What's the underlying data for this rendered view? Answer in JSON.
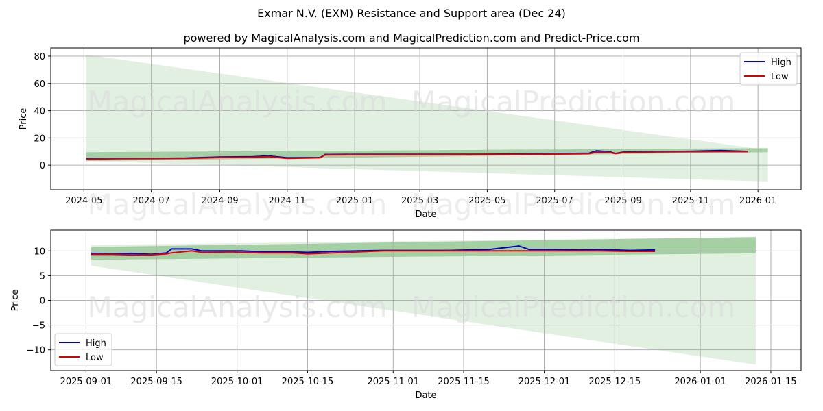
{
  "header": {
    "title": "Exmar N.V. (EXM) Resistance and Support area (Dec 24)",
    "subtitle": "powered by MagicalAnalysis.com and MagicalPrediction.com and Predict-Price.com"
  },
  "watermarks": [
    "MagicalAnalysis.com",
    "MagicalPrediction.com"
  ],
  "colors": {
    "high": "#0000cc",
    "low": "#dd0000",
    "band_light": "#d6ead6",
    "band_dark": "#8fc58f"
  },
  "chart_data": [
    {
      "type": "line",
      "title": "",
      "xlabel": "Date",
      "ylabel": "Price",
      "ylim": [
        -18,
        86
      ],
      "yticks": [
        0,
        20,
        40,
        60,
        80
      ],
      "xticks": [
        "2024-05",
        "2024-07",
        "2024-09",
        "2024-11",
        "2025-01",
        "2025-03",
        "2025-05",
        "2025-07",
        "2025-09",
        "2025-11",
        "2026-01"
      ],
      "grid": true,
      "legend_position": "upper right",
      "x": [
        "2024-05-03",
        "2024-06-01",
        "2024-07-01",
        "2024-08-01",
        "2024-09-01",
        "2024-10-01",
        "2024-10-15",
        "2024-11-01",
        "2024-12-01",
        "2024-12-05",
        "2025-01-01",
        "2025-03-01",
        "2025-05-01",
        "2025-06-20",
        "2025-08-01",
        "2025-08-08",
        "2025-08-20",
        "2025-08-25",
        "2025-09-01",
        "2025-10-01",
        "2025-11-01",
        "2025-11-28",
        "2025-12-23"
      ],
      "series": [
        {
          "name": "High",
          "values": [
            4.8,
            5.0,
            5.0,
            5.2,
            6.0,
            6.2,
            6.8,
            5.4,
            5.6,
            7.8,
            7.9,
            8.0,
            8.1,
            8.4,
            8.8,
            10.6,
            9.8,
            8.6,
            9.6,
            10.0,
            10.2,
            10.8,
            10.1
          ]
        },
        {
          "name": "Low",
          "values": [
            4.4,
            4.7,
            4.8,
            5.0,
            5.6,
            5.8,
            6.2,
            5.0,
            5.4,
            7.5,
            7.6,
            7.7,
            7.9,
            8.0,
            8.4,
            9.6,
            9.4,
            8.4,
            9.3,
            9.7,
            9.9,
            10.0,
            9.9
          ]
        }
      ],
      "bands": [
        {
          "name": "resistance-support-wide",
          "x_start": "2024-05-03",
          "x_end": "2026-01-10",
          "upper": [
            81,
            11
          ],
          "lower": [
            3,
            -12
          ]
        },
        {
          "name": "resistance-support-narrow",
          "x_start": "2024-05-03",
          "x_end": "2026-01-10",
          "upper": [
            9.5,
            12.5
          ],
          "lower": [
            3,
            9.5
          ]
        }
      ]
    },
    {
      "type": "line",
      "title": "",
      "xlabel": "Date",
      "ylabel": "Price",
      "ylim": [
        -14.2,
        14.2
      ],
      "yticks": [
        -10,
        -5,
        0,
        5,
        10
      ],
      "xticks": [
        "2025-09-01",
        "2025-09-15",
        "2025-10-01",
        "2025-10-15",
        "2025-11-01",
        "2025-11-15",
        "2025-12-01",
        "2025-12-15",
        "2026-01-01",
        "2026-01-15"
      ],
      "grid": true,
      "legend_position": "lower left",
      "x": [
        "2025-09-02",
        "2025-09-06",
        "2025-09-10",
        "2025-09-14",
        "2025-09-17",
        "2025-09-18",
        "2025-09-22",
        "2025-09-24",
        "2025-09-30",
        "2025-10-02",
        "2025-10-06",
        "2025-10-12",
        "2025-10-15",
        "2025-10-20",
        "2025-10-25",
        "2025-10-30",
        "2025-11-05",
        "2025-11-12",
        "2025-11-20",
        "2025-11-26",
        "2025-11-28",
        "2025-12-03",
        "2025-12-08",
        "2025-12-12",
        "2025-12-18",
        "2025-12-23"
      ],
      "series": [
        {
          "name": "High",
          "values": [
            9.5,
            9.4,
            9.5,
            9.3,
            9.6,
            10.4,
            10.4,
            10.0,
            10.0,
            10.0,
            9.8,
            9.8,
            9.7,
            9.9,
            10.0,
            10.1,
            10.1,
            10.1,
            10.3,
            11.0,
            10.3,
            10.3,
            10.2,
            10.3,
            10.1,
            10.2
          ]
        },
        {
          "name": "Low",
          "values": [
            9.3,
            9.3,
            9.2,
            9.2,
            9.4,
            9.6,
            10.0,
            9.7,
            9.8,
            9.7,
            9.6,
            9.6,
            9.4,
            9.6,
            9.8,
            10.0,
            10.0,
            10.0,
            10.0,
            10.0,
            10.0,
            10.0,
            10.0,
            10.0,
            9.9,
            9.9
          ]
        }
      ],
      "bands": [
        {
          "name": "resistance-support-wide",
          "x_start": "2025-09-02",
          "x_end": "2026-01-12",
          "upper": [
            11.2,
            12.8
          ],
          "lower": [
            7,
            -13
          ]
        },
        {
          "name": "resistance-support-narrow",
          "x_start": "2025-09-02",
          "x_end": "2026-01-12",
          "upper": [
            10.8,
            12.8
          ],
          "lower": [
            8.2,
            9.5
          ]
        }
      ]
    }
  ],
  "legend": {
    "high_label": "High",
    "low_label": "Low"
  }
}
